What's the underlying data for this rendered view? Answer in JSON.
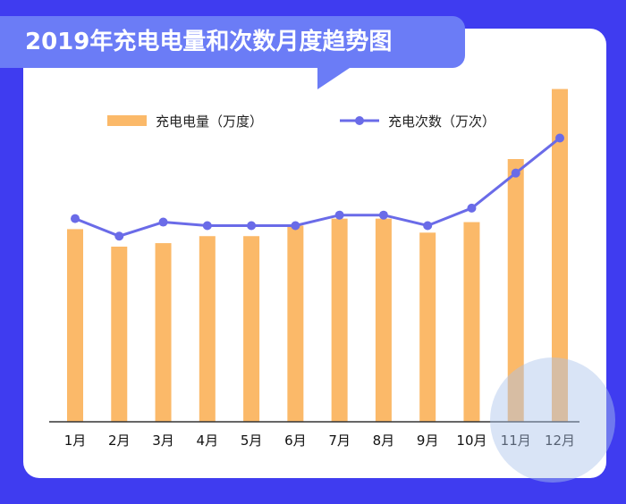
{
  "title": "2019年充电电量和次数月度趋势图",
  "chart_data": {
    "type": "bar",
    "categories": [
      "1月",
      "2月",
      "3月",
      "4月",
      "5月",
      "6月",
      "7月",
      "8月",
      "9月",
      "10月",
      "11月",
      "12月"
    ],
    "series": [
      {
        "name": "充电电量（万度）",
        "type": "bar",
        "color": "#fbb969",
        "values": [
          55,
          50,
          51,
          53,
          53,
          56,
          58,
          58,
          54,
          57,
          75,
          95
        ]
      },
      {
        "name": "充电次数（万次）",
        "type": "line",
        "color": "#6a6be8",
        "values": [
          58,
          53,
          57,
          56,
          56,
          56,
          59,
          59,
          56,
          61,
          71,
          81
        ]
      }
    ],
    "ylim_bar": [
      0,
      100
    ],
    "ylim_line": [
      0,
      100
    ],
    "grid": false,
    "legend": "top-center"
  }
}
